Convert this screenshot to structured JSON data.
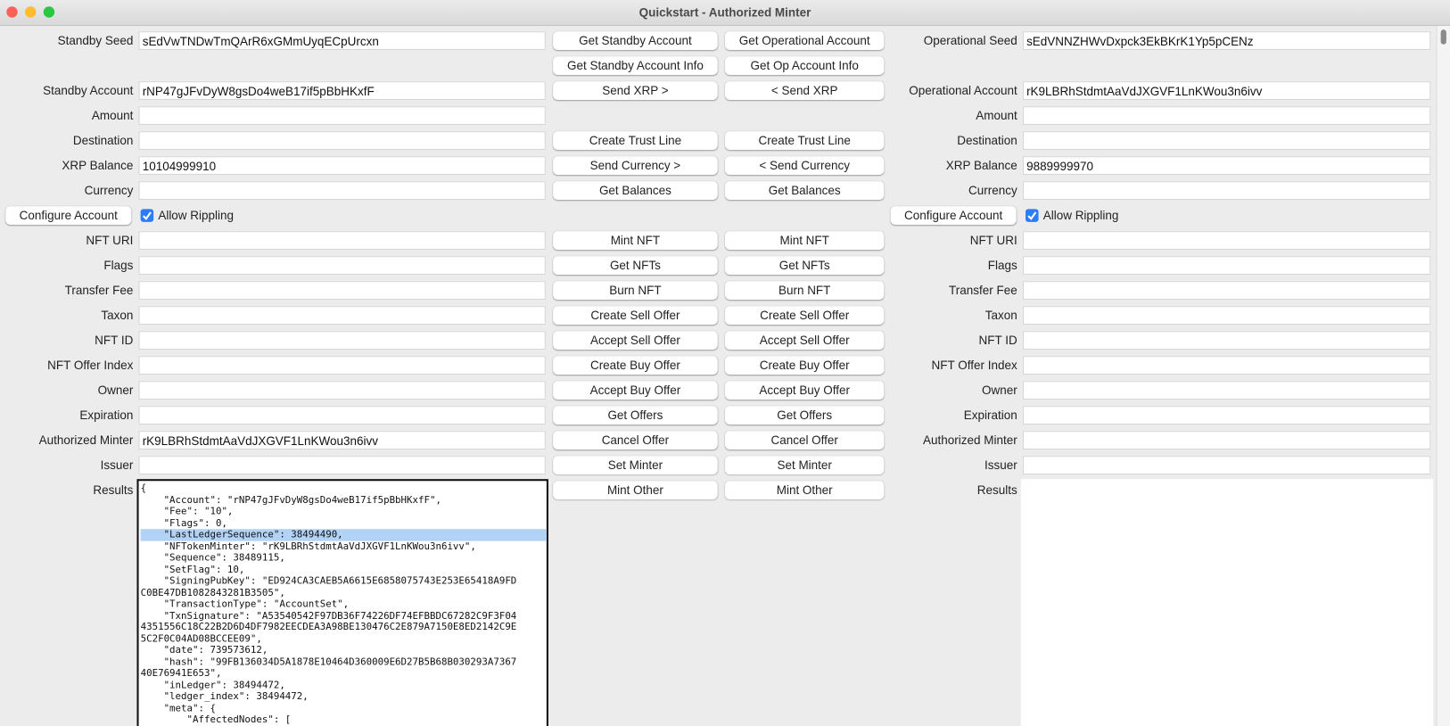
{
  "window": {
    "title": "Quickstart - Authorized Minter"
  },
  "rows": [
    {
      "standby": {
        "label": "Standby Seed",
        "value": "sEdVwTNDwTmQArR6xGMmUyqECpUrcxn"
      },
      "buttons": [
        "Get Standby Account",
        "Get Operational Account"
      ],
      "operational": {
        "label": "Operational Seed",
        "value": "sEdVNNZHWvDxpck3EkBKrK1Yp5pCENz"
      }
    },
    {
      "buttons": [
        "Get Standby Account Info",
        "Get Op Account Info"
      ]
    },
    {
      "standby": {
        "label": "Standby Account",
        "value": "rNP47gJFvDyW8gsDo4weB17if5pBbHKxfF"
      },
      "buttons": [
        "Send XRP >",
        "< Send XRP"
      ],
      "operational": {
        "label": "Operational Account",
        "value": "rK9LBRhStdmtAaVdJXGVF1LnKWou3n6ivv"
      }
    },
    {
      "standby": {
        "label": "Amount",
        "value": ""
      },
      "operational": {
        "label": "Amount",
        "value": ""
      }
    },
    {
      "standby": {
        "label": "Destination",
        "value": ""
      },
      "buttons": [
        "Create Trust Line",
        "Create Trust Line"
      ],
      "operational": {
        "label": "Destination",
        "value": ""
      }
    },
    {
      "standby": {
        "label": "XRP Balance",
        "value": "10104999910"
      },
      "buttons": [
        "Send Currency >",
        "< Send Currency"
      ],
      "operational": {
        "label": "XRP Balance",
        "value": "9889999970"
      }
    },
    {
      "standby": {
        "label": "Currency",
        "value": ""
      },
      "buttons": [
        "Get Balances",
        "Get Balances"
      ],
      "operational": {
        "label": "Currency",
        "value": ""
      }
    },
    {
      "standby": {
        "button": "Configure Account",
        "checkbox": "Allow Rippling"
      },
      "operational": {
        "button": "Configure Account",
        "checkbox": "Allow Rippling"
      }
    },
    {
      "standby": {
        "label": "NFT URI",
        "value": ""
      },
      "buttons": [
        "Mint NFT",
        "Mint NFT"
      ],
      "operational": {
        "label": "NFT URI",
        "value": ""
      }
    },
    {
      "standby": {
        "label": "Flags",
        "value": ""
      },
      "buttons": [
        "Get NFTs",
        "Get NFTs"
      ],
      "operational": {
        "label": "Flags",
        "value": ""
      }
    },
    {
      "standby": {
        "label": "Transfer Fee",
        "value": ""
      },
      "buttons": [
        "Burn NFT",
        "Burn NFT"
      ],
      "operational": {
        "label": "Transfer Fee",
        "value": ""
      }
    },
    {
      "standby": {
        "label": "Taxon",
        "value": ""
      },
      "buttons": [
        "Create Sell Offer",
        "Create Sell Offer"
      ],
      "operational": {
        "label": "Taxon",
        "value": ""
      }
    },
    {
      "standby": {
        "label": "NFT ID",
        "value": ""
      },
      "buttons": [
        "Accept Sell Offer",
        "Accept Sell Offer"
      ],
      "operational": {
        "label": "NFT ID",
        "value": ""
      }
    },
    {
      "standby": {
        "label": "NFT Offer Index",
        "value": ""
      },
      "buttons": [
        "Create Buy Offer",
        "Create Buy Offer"
      ],
      "operational": {
        "label": "NFT Offer Index",
        "value": ""
      }
    },
    {
      "standby": {
        "label": "Owner",
        "value": ""
      },
      "buttons": [
        "Accept Buy Offer",
        "Accept Buy Offer"
      ],
      "operational": {
        "label": "Owner",
        "value": ""
      }
    },
    {
      "standby": {
        "label": "Expiration",
        "value": ""
      },
      "buttons": [
        "Get Offers",
        "Get Offers"
      ],
      "operational": {
        "label": "Expiration",
        "value": ""
      }
    },
    {
      "standby": {
        "label": "Authorized Minter",
        "value": "rK9LBRhStdmtAaVdJXGVF1LnKWou3n6ivv"
      },
      "buttons": [
        "Cancel Offer",
        "Cancel Offer"
      ],
      "operational": {
        "label": "Authorized Minter",
        "value": ""
      }
    },
    {
      "standby": {
        "label": "Issuer",
        "value": ""
      },
      "buttons": [
        "Set Minter",
        "Set Minter"
      ],
      "operational": {
        "label": "Issuer",
        "value": ""
      }
    },
    {
      "standby": {
        "label": "Results",
        "lines": [
          "{",
          "    \"Account\": \"rNP47gJFvDyW8gsDo4weB17if5pBbHKxfF\",",
          "    \"Fee\": \"10\",",
          "    \"Flags\": 0,",
          "    \"LastLedgerSequence\": 38494490,",
          "    \"NFTokenMinter\": \"rK9LBRhStdmtAaVdJXGVF1LnKWou3n6ivv\",",
          "    \"Sequence\": 38489115,",
          "    \"SetFlag\": 10,",
          "    \"SigningPubKey\": \"ED924CA3CAEB5A6615E6858075743E253E65418A9FD",
          "C0BE47DB1082843281B3505\",",
          "    \"TransactionType\": \"AccountSet\",",
          "    \"TxnSignature\": \"A53540542F97DB36F74226DF74EFBBDC67282C9F3F04",
          "4351556C18C22B2D6D4DF7982EECDEA3A98BE130476C2E879A7150E8ED2142C9E",
          "5C2F0C04AD08BCCEE09\",",
          "    \"date\": 739573612,",
          "    \"hash\": \"99FB136034D5A1878E10464D360009E6D27B5B68B030293A7367",
          "40E76941E653\",",
          "    \"inLedger\": 38494472,",
          "    \"ledger_index\": 38494472,",
          "    \"meta\": {",
          "        \"AffectedNodes\": ["
        ]
      },
      "buttons": [
        "Mint Other",
        "Mint Other"
      ],
      "operational": {
        "label": "Results",
        "lines": []
      }
    }
  ]
}
